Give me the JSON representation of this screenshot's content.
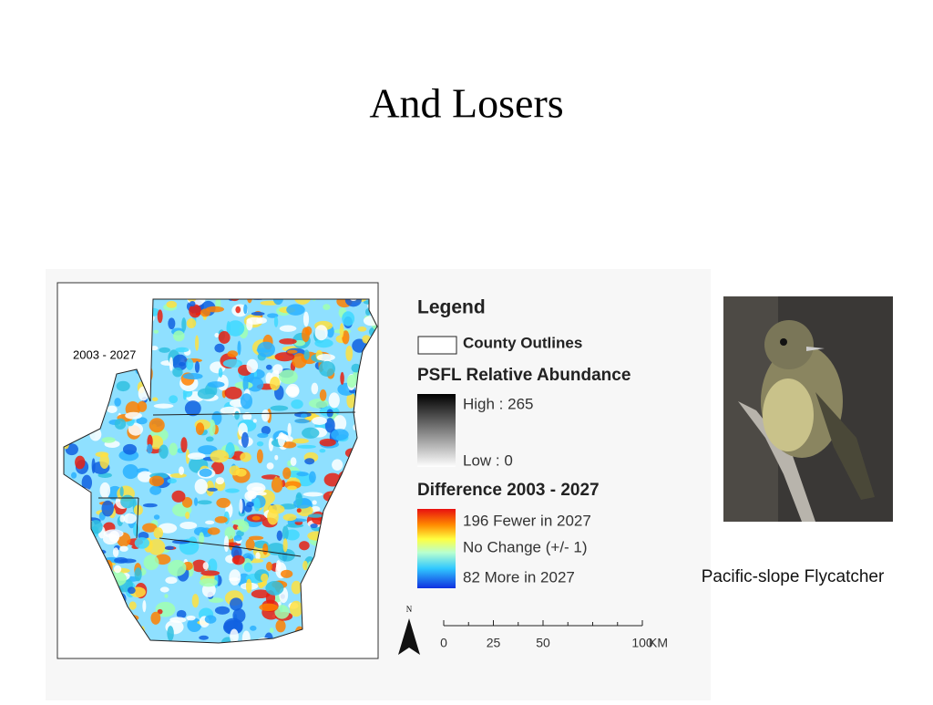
{
  "header": {
    "title": "And Losers"
  },
  "map": {
    "label": "2003 - 2027"
  },
  "legend": {
    "title": "Legend",
    "county": "County Outlines",
    "abundance_title": "PSFL Relative Abundance",
    "high": "High : 265",
    "low": "Low : 0",
    "difference_title": "Difference 2003 - 2027",
    "fewer": "196 Fewer in 2027",
    "no_change": "No Change (+/- 1)",
    "more": "82 More in 2027"
  },
  "scale_bar": {
    "north": "N",
    "ticks": [
      0,
      25,
      50,
      100
    ],
    "unit": "KM"
  },
  "photo": {
    "caption": "Pacific-slope Flycatcher"
  }
}
